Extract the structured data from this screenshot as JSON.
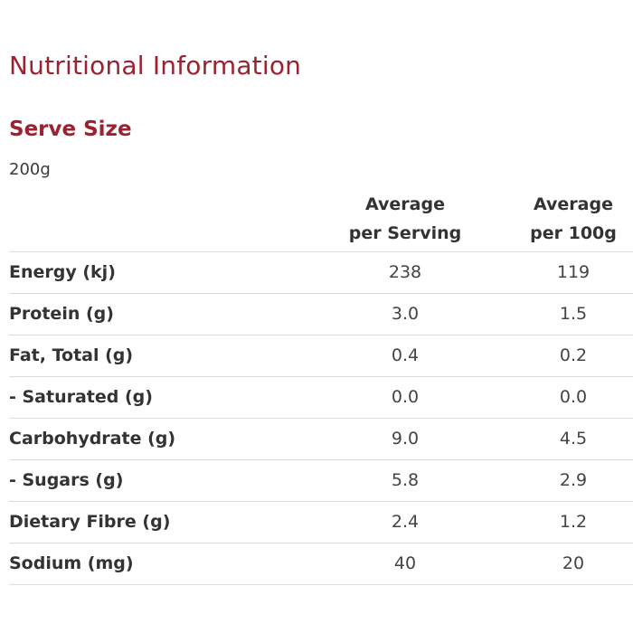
{
  "page": {
    "title": "Nutritional Information",
    "serve_size_label": "Serve Size",
    "serve_size_value": "200g",
    "accent_color": "#9b2230"
  },
  "table": {
    "columns": [
      {
        "line1": "Average",
        "line2": "per Serving"
      },
      {
        "line1": "Average",
        "line2": "per 100g"
      }
    ],
    "rows": [
      {
        "label": "Energy (kj)",
        "per_serving": "238",
        "per_100g": "119"
      },
      {
        "label": "Protein (g)",
        "per_serving": "3.0",
        "per_100g": "1.5"
      },
      {
        "label": "Fat, Total (g)",
        "per_serving": "0.4",
        "per_100g": "0.2"
      },
      {
        "label": "- Saturated (g)",
        "per_serving": "0.0",
        "per_100g": "0.0"
      },
      {
        "label": "Carbohydrate (g)",
        "per_serving": "9.0",
        "per_100g": "4.5"
      },
      {
        "label": "- Sugars (g)",
        "per_serving": "5.8",
        "per_100g": "2.9"
      },
      {
        "label": "Dietary Fibre (g)",
        "per_serving": "2.4",
        "per_100g": "1.2"
      },
      {
        "label": "Sodium (mg)",
        "per_serving": "40",
        "per_100g": "20"
      }
    ]
  }
}
